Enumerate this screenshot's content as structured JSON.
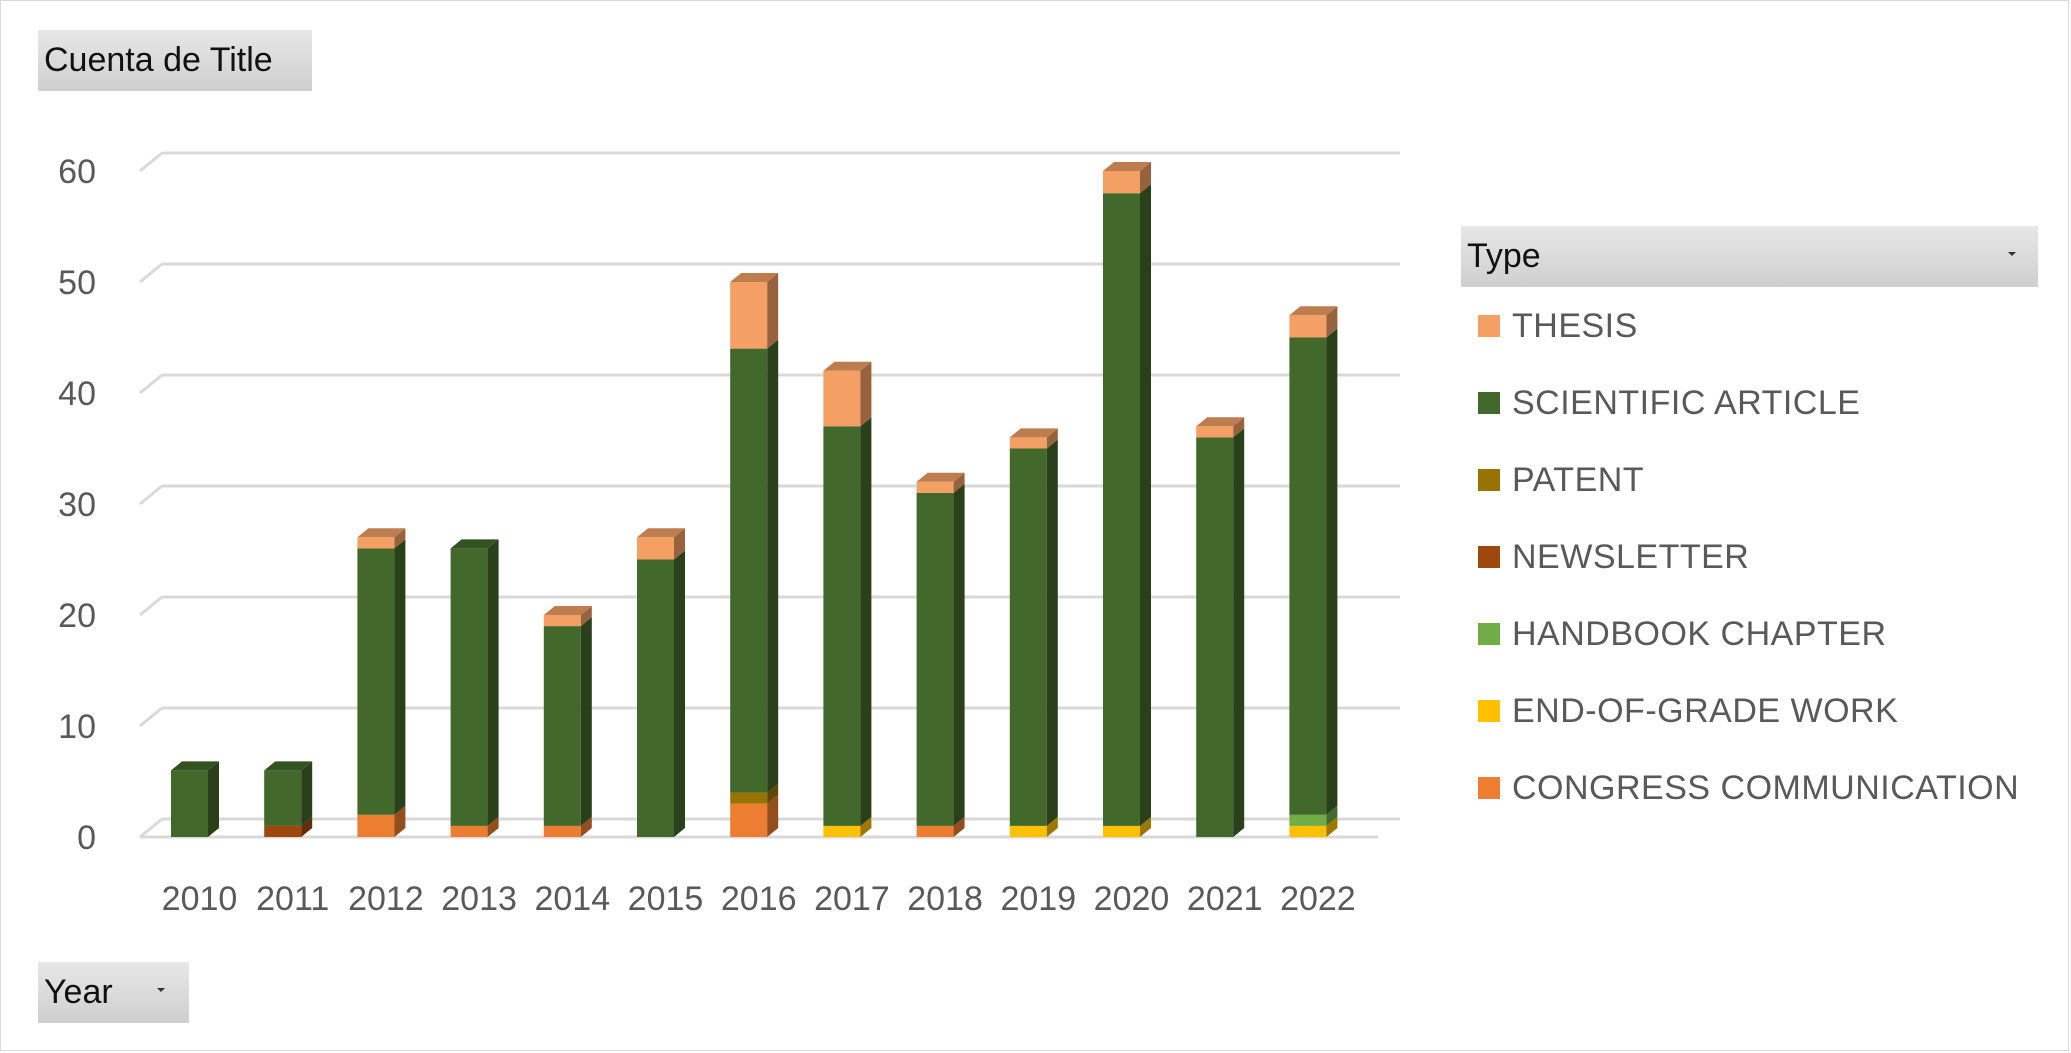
{
  "pivot": {
    "value_field": "Cuenta de Title",
    "row_field": "Year",
    "legend_field": "Type"
  },
  "legend": [
    {
      "key": "thesis",
      "label": "THESIS",
      "color": "#f4a064"
    },
    {
      "key": "scientific_article",
      "label": "SCIENTIFIC ARTICLE",
      "color": "#43682b"
    },
    {
      "key": "patent",
      "label": "PATENT",
      "color": "#997300"
    },
    {
      "key": "newsletter",
      "label": "NEWSLETTER",
      "color": "#9e480e"
    },
    {
      "key": "handbook_chapter",
      "label": "HANDBOOK CHAPTER",
      "color": "#70ad47"
    },
    {
      "key": "end_of_grade_work",
      "label": "END-OF-GRADE WORK",
      "color": "#ffc000"
    },
    {
      "key": "congress_communication",
      "label": "CONGRESS COMMUNICATION",
      "color": "#ed7d31"
    }
  ],
  "chart_data": {
    "type": "bar",
    "stacked": true,
    "three_d": true,
    "categories": [
      "2010",
      "2011",
      "2012",
      "2013",
      "2014",
      "2015",
      "2016",
      "2017",
      "2018",
      "2019",
      "2020",
      "2021",
      "2022"
    ],
    "series": [
      {
        "name": "CONGRESS COMMUNICATION",
        "color": "#ed7d31",
        "values": [
          0,
          0,
          2,
          1,
          1,
          0,
          3,
          0,
          1,
          0,
          0,
          0,
          0
        ]
      },
      {
        "name": "END-OF-GRADE WORK",
        "color": "#ffc000",
        "values": [
          0,
          0,
          0,
          0,
          0,
          0,
          0,
          1,
          0,
          1,
          1,
          0,
          1
        ]
      },
      {
        "name": "HANDBOOK CHAPTER",
        "color": "#70ad47",
        "values": [
          0,
          0,
          0,
          0,
          0,
          0,
          0,
          0,
          0,
          0,
          0,
          0,
          1
        ]
      },
      {
        "name": "NEWSLETTER",
        "color": "#9e480e",
        "values": [
          0,
          1,
          0,
          0,
          0,
          0,
          0,
          0,
          0,
          0,
          0,
          0,
          0
        ]
      },
      {
        "name": "PATENT",
        "color": "#997300",
        "values": [
          0,
          0,
          0,
          0,
          0,
          0,
          1,
          0,
          0,
          0,
          0,
          0,
          0
        ]
      },
      {
        "name": "SCIENTIFIC ARTICLE",
        "color": "#43682b",
        "values": [
          6,
          5,
          24,
          25,
          18,
          25,
          40,
          36,
          30,
          34,
          57,
          36,
          43
        ]
      },
      {
        "name": "THESIS",
        "color": "#f4a064",
        "values": [
          0,
          0,
          1,
          0,
          1,
          2,
          6,
          5,
          1,
          1,
          2,
          1,
          2
        ]
      }
    ],
    "ylim": [
      0,
      60
    ],
    "yticks": [
      "0",
      "10",
      "20",
      "30",
      "40",
      "50",
      "60"
    ],
    "grid": true,
    "legend_position": "right"
  }
}
